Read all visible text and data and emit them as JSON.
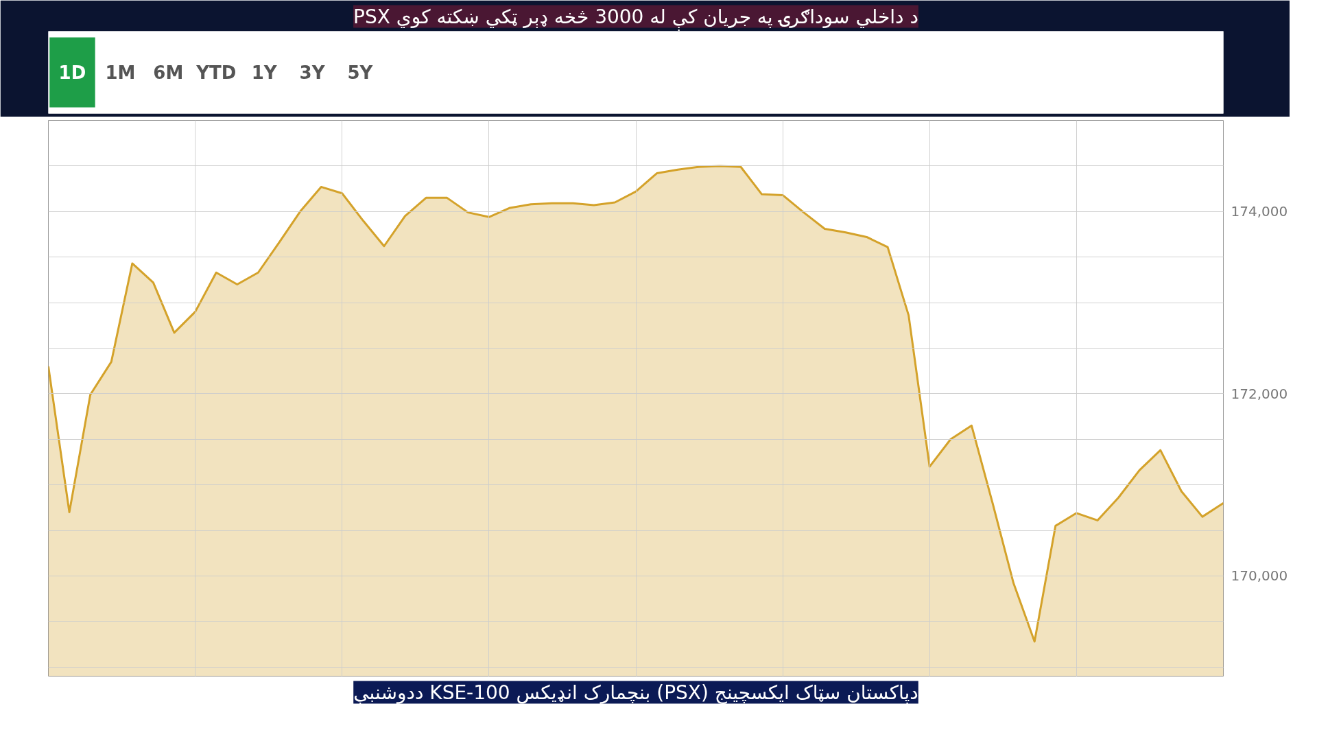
{
  "chart_data": {
    "type": "area",
    "title": "PSX د داخلي سوداګرۍ په جریان کې له 3000 څخه ډېر ټکي ښکته کوي",
    "subtitle": "ددوشنبې KSE-100 بنچمارک انډیکس (PSX) دپاکستان سټاک ایکسچینج",
    "annotations": [
      "1D",
      "1M",
      "6M",
      "YTD",
      "1Y",
      "3Y",
      "5Y"
    ],
    "categories": [
      null,
      null,
      null,
      null,
      null,
      null,
      null,
      null,
      null,
      null,
      null,
      null,
      null,
      null,
      null,
      null,
      null,
      null,
      null,
      null,
      null,
      null,
      null,
      null,
      null,
      null,
      null,
      null,
      null,
      null,
      null,
      null,
      null,
      null,
      null,
      null,
      null,
      null,
      null,
      null,
      null,
      null,
      null,
      null,
      null,
      null,
      null,
      null,
      null,
      null,
      null,
      null,
      null,
      null,
      null,
      null,
      null
    ],
    "series": [
      {
        "color": "#d4a22a",
        "values": [
          172300,
          170700,
          171990,
          172350,
          173430,
          173220,
          172670,
          172900,
          173330,
          173200,
          173330,
          173660,
          174000,
          174270,
          174200,
          173900,
          173620,
          173950,
          174150,
          174150,
          173990,
          173940,
          174040,
          174080,
          174090,
          174090,
          174070,
          174100,
          174220,
          174420,
          174460,
          174490,
          174500,
          174490,
          174190,
          174180,
          173990,
          173810,
          173770,
          173720,
          173610,
          172860,
          171200,
          171500,
          171650,
          170800,
          169920,
          169280,
          170550,
          170690,
          170610,
          170860,
          171160,
          171380,
          170930,
          170650,
          170800
        ]
      }
    ],
    "ylim": [
      168900,
      175000
    ],
    "yticks": [
      {
        "value": 169000,
        "label": null
      },
      {
        "value": 169500,
        "label": null
      },
      {
        "value": 170000,
        "label": "170,000"
      },
      {
        "value": 170500,
        "label": null
      },
      {
        "value": 171000,
        "label": null
      },
      {
        "value": 171500,
        "label": null
      },
      {
        "value": 172000,
        "label": "172,000"
      },
      {
        "value": 172500,
        "label": null
      },
      {
        "value": 173000,
        "label": null
      },
      {
        "value": 173500,
        "label": null
      },
      {
        "value": 174000,
        "label": "174,000"
      },
      {
        "value": 174500,
        "label": null
      },
      {
        "value": 175000,
        "label": null
      }
    ],
    "tick_labels": "y",
    "grid": true
  }
}
